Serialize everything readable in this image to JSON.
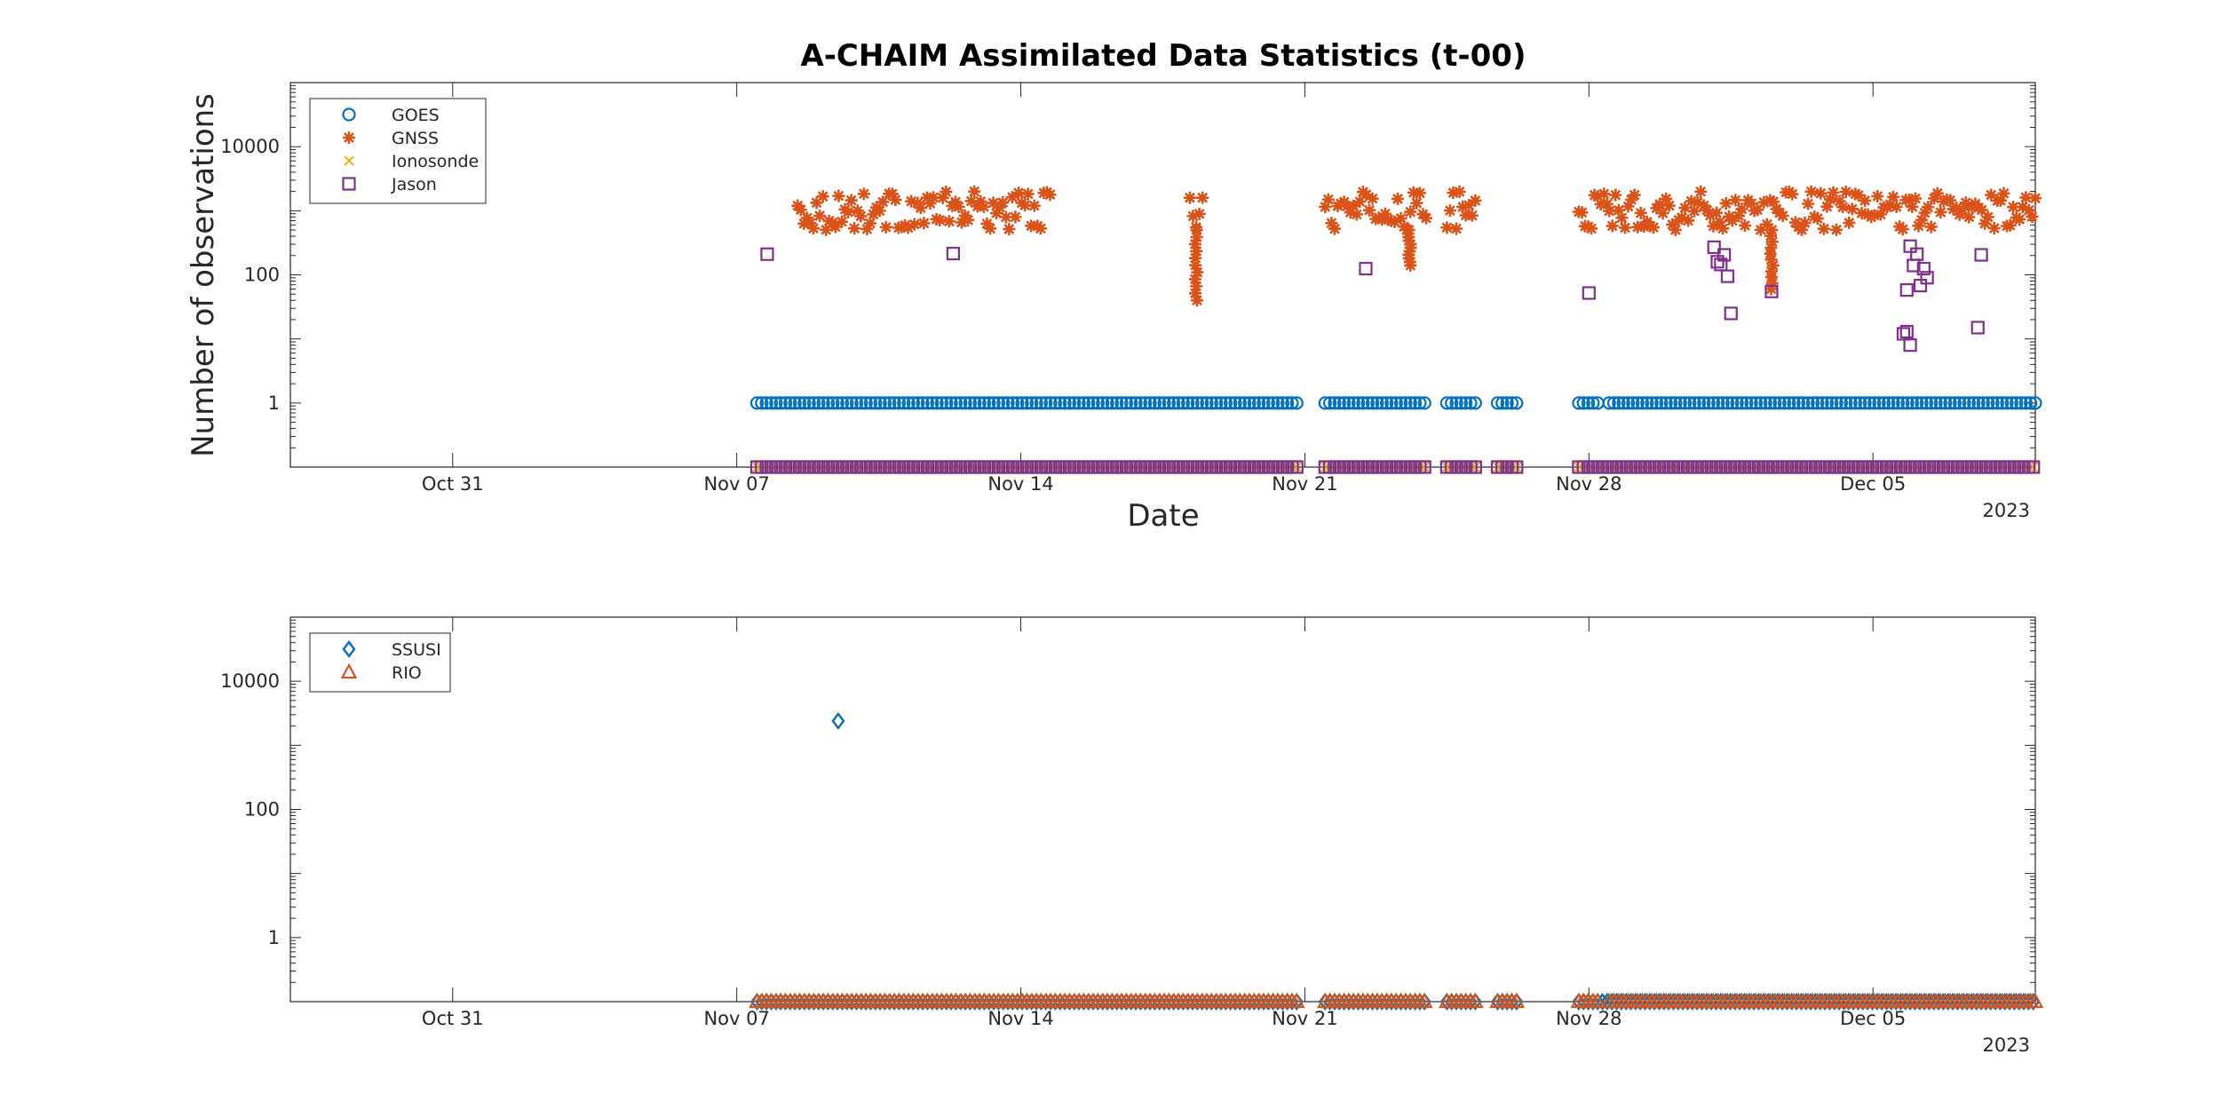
{
  "chart_data": [
    {
      "type": "scatter",
      "title": "A-CHAIM Assimilated Data Statistics (t-00)",
      "xlabel": "Date",
      "ylabel": "Number of observations",
      "y_scale": "log",
      "xlim": [
        "2022-10-27",
        "2022-12-09"
      ],
      "ylim": [
        0.1,
        100000
      ],
      "x_ticks": [
        "Oct 31",
        "Nov 07",
        "Nov 14",
        "Nov 21",
        "Nov 28",
        "Dec 05"
      ],
      "x_year_label": "2023",
      "y_ticks": [
        "1",
        "100",
        "10000"
      ],
      "legend_position": "top-left",
      "series": [
        {
          "name": "GOES",
          "marker": "circle",
          "color": "#0072BD",
          "value": 1,
          "date_ranges": [
            [
              "2022-11-07T12",
              "2022-11-20T20"
            ],
            [
              "2022-11-21T12",
              "2022-11-24T00"
            ],
            [
              "2022-11-24T12",
              "2022-11-25T06"
            ],
            [
              "2022-11-25T18",
              "2022-11-26T06"
            ],
            [
              "2022-11-27T18",
              "2022-11-28T06"
            ],
            [
              "2022-11-28T12",
              "2022-12-09T00"
            ]
          ]
        },
        {
          "name": "GNSS",
          "marker": "asterisk",
          "color": "#D95319",
          "value_range": [
            500,
            2000
          ],
          "date_ranges": [
            [
              "2022-11-08T12",
              "2022-11-14T18"
            ],
            [
              "2022-11-18T04",
              "2022-11-18T12"
            ],
            [
              "2022-11-21T12",
              "2022-11-24T00"
            ],
            [
              "2022-11-24T12",
              "2022-11-25T06"
            ],
            [
              "2022-11-27T18",
              "2022-11-28T12"
            ],
            [
              "2022-11-28T12",
              "2022-12-09T00"
            ]
          ],
          "dips": [
            [
              "2022-11-18T08",
              40
            ],
            [
              "2022-11-23T14",
              140
            ],
            [
              "2022-12-02T12",
              60
            ]
          ]
        },
        {
          "name": "Ionosonde",
          "marker": "x",
          "color": "#EDB120",
          "value": 0.1,
          "date_ranges": [
            [
              "2022-11-07T12",
              "2022-11-20T20"
            ],
            [
              "2022-11-21T12",
              "2022-11-24T00"
            ],
            [
              "2022-11-24T12",
              "2022-11-25T06"
            ],
            [
              "2022-11-25T18",
              "2022-11-26T06"
            ],
            [
              "2022-11-27T18",
              "2022-12-09T00"
            ]
          ]
        },
        {
          "name": "Jason",
          "marker": "square",
          "color": "#7E2F8E",
          "value_floor": 0.1,
          "points": [
            [
              "2022-11-07T18",
              210
            ],
            [
              "2022-11-12T08",
              215
            ],
            [
              "2022-11-22T12",
              125
            ],
            [
              "2022-11-28T00",
              52
            ],
            [
              "2022-12-01T02",
              270
            ],
            [
              "2022-12-01T04",
              160
            ],
            [
              "2022-12-01T06",
              145
            ],
            [
              "2022-12-01T08",
              205
            ],
            [
              "2022-12-01T10",
              95
            ],
            [
              "2022-12-01T12",
              25
            ],
            [
              "2022-12-02T12",
              55
            ],
            [
              "2022-12-05T18",
              12
            ],
            [
              "2022-12-05T20",
              13
            ],
            [
              "2022-12-05T22",
              8
            ],
            [
              "2022-12-05T20",
              58
            ],
            [
              "2022-12-05T22",
              280
            ],
            [
              "2022-12-06T00",
              140
            ],
            [
              "2022-12-06T02",
              210
            ],
            [
              "2022-12-06T04",
              68
            ],
            [
              "2022-12-06T06",
              125
            ],
            [
              "2022-12-06T08",
              90
            ],
            [
              "2022-12-07T14",
              15
            ],
            [
              "2022-12-07T16",
              205
            ]
          ],
          "floor_ranges": [
            [
              "2022-11-07T12",
              "2022-11-20T20"
            ],
            [
              "2022-11-21T12",
              "2022-11-24T00"
            ],
            [
              "2022-11-24T12",
              "2022-11-25T06"
            ],
            [
              "2022-11-25T18",
              "2022-11-26T06"
            ],
            [
              "2022-11-27T18",
              "2022-12-09T00"
            ]
          ]
        }
      ]
    },
    {
      "type": "scatter",
      "title": "",
      "xlabel": "",
      "ylabel": "",
      "y_scale": "log",
      "xlim": [
        "2022-10-27",
        "2022-12-09"
      ],
      "ylim": [
        0.1,
        100000
      ],
      "x_ticks": [
        "Oct 31",
        "Nov 07",
        "Nov 14",
        "Nov 21",
        "Nov 28",
        "Dec 05"
      ],
      "x_year_label": "2023",
      "y_ticks": [
        "1",
        "100",
        "10000"
      ],
      "legend_position": "top-left",
      "series": [
        {
          "name": "SSUSI",
          "marker": "diamond",
          "color": "#0072BD",
          "points": [
            [
              "2022-11-09T12",
              2400
            ]
          ],
          "floor_ranges": [
            [
              "2022-11-07T12",
              "2022-11-20T20"
            ],
            [
              "2022-11-21T12",
              "2022-11-24T00"
            ],
            [
              "2022-11-24T12",
              "2022-11-25T06"
            ],
            [
              "2022-11-25T18",
              "2022-11-26T06"
            ],
            [
              "2022-11-27T18",
              "2022-12-09T00"
            ]
          ],
          "value_floor": 0.1
        },
        {
          "name": "RIO",
          "marker": "triangle",
          "color": "#D95319",
          "value": 0.1,
          "date_ranges": [
            [
              "2022-11-07T12",
              "2022-11-20T20"
            ],
            [
              "2022-11-21T12",
              "2022-11-24T00"
            ],
            [
              "2022-11-24T12",
              "2022-11-25T06"
            ],
            [
              "2022-11-25T18",
              "2022-11-26T06"
            ],
            [
              "2022-11-27T18",
              "2022-11-28T06"
            ],
            [
              "2022-11-28T12",
              "2022-12-09T00"
            ]
          ]
        }
      ]
    }
  ]
}
